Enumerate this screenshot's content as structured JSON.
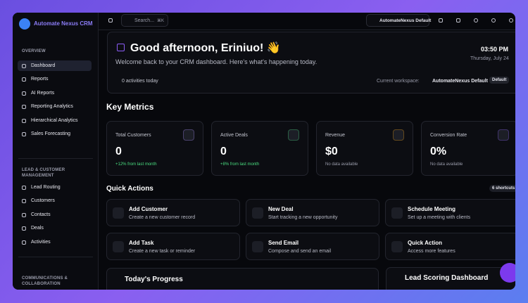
{
  "brand": "Automate Nexus CRM",
  "search": {
    "placeholder": "Search...",
    "shortcut": "⌘K"
  },
  "header": {
    "workspace": "AutomateNexus Default"
  },
  "sidebar": [
    {
      "title": "OVERVIEW",
      "items": [
        "Dashboard",
        "Reports",
        "AI Reports",
        "Reporting Analytics",
        "Hierarchical Analytics",
        "Sales Forecasting"
      ]
    },
    {
      "title": "LEAD & CUSTOMER MANAGEMENT",
      "items": [
        "Lead Routing",
        "Customers",
        "Contacts",
        "Deals",
        "Activities"
      ]
    },
    {
      "title": "COMMUNICATIONS & COLLABORATION",
      "items": []
    }
  ],
  "welcome": {
    "greeting": "Good afternoon, Eriniuo! 👋",
    "subtitle": "Welcome back to your CRM dashboard. Here's what's happening today.",
    "time": "03:50 PM",
    "date": "Thursday, July 24",
    "activities": "0 activities today",
    "workspace_label": "Current workspace:",
    "workspace": "AutomateNexus Default",
    "badge": "Default"
  },
  "metrics": {
    "title": "Key Metrics",
    "cards": [
      {
        "label": "Total Customers",
        "value": "0",
        "note": "+12% from last month"
      },
      {
        "label": "Active Deals",
        "value": "0",
        "note": "+8% from last month"
      },
      {
        "label": "Revenue",
        "value": "$0",
        "note": "No data available"
      },
      {
        "label": "Conversion Rate",
        "value": "0%",
        "note": "No data available"
      }
    ]
  },
  "quick_actions": {
    "title": "Quick Actions",
    "badge": "6 shortcuts",
    "actions": [
      {
        "title": "Add Customer",
        "desc": "Create a new customer record"
      },
      {
        "title": "New Deal",
        "desc": "Start tracking a new opportunity"
      },
      {
        "title": "Schedule Meeting",
        "desc": "Set up a meeting with clients"
      },
      {
        "title": "Add Task",
        "desc": "Create a new task or reminder"
      },
      {
        "title": "Send Email",
        "desc": "Compose and send an email"
      },
      {
        "title": "Quick Action",
        "desc": "Access more features"
      }
    ]
  },
  "panels": [
    "Today's Progress",
    "Lead Scoring Dashboard"
  ]
}
